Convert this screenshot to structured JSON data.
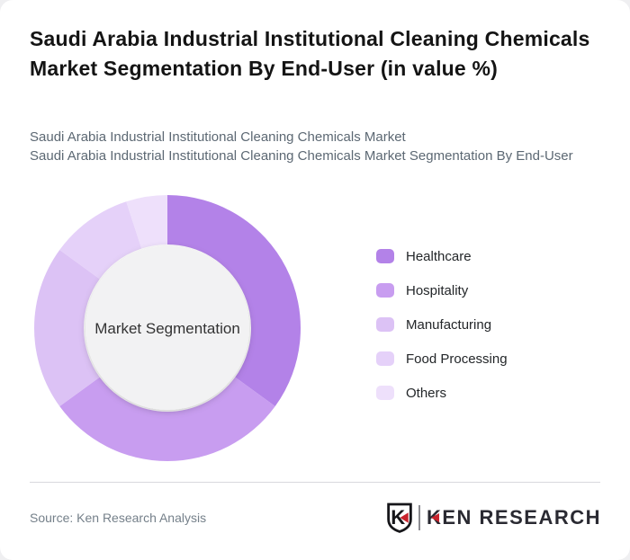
{
  "page": {
    "background": "#efeff1",
    "card_background": "#ffffff"
  },
  "header": {
    "title": "Saudi Arabia Industrial Institutional Cleaning Chemicals Market Segmentation By End-User (in value %)",
    "subtitle_line1": "Saudi Arabia Industrial Institutional Cleaning Chemicals Market",
    "subtitle_line2": "Saudi Arabia Industrial Institutional Cleaning Chemicals Market Segmentation By End-User"
  },
  "chart_data": {
    "type": "pie",
    "variant": "donut",
    "title": "Saudi Arabia Industrial Institutional Cleaning Chemicals Market Segmentation By End-User (in value %)",
    "center_label": "Market Segmentation",
    "categories": [
      "Healthcare",
      "Hospitality",
      "Manufacturing",
      "Food Processing",
      "Others"
    ],
    "values": [
      35,
      30,
      20,
      10,
      5
    ],
    "unit": "%",
    "colors": [
      "#b382e8",
      "#c89df0",
      "#dcc2f5",
      "#e5d1f9",
      "#eee0fb"
    ],
    "inner_circle_color": "#f2f2f3",
    "legend_position": "right",
    "start_angle_deg": 0,
    "clockwise": true
  },
  "footer": {
    "source": "Source: Ken Research Analysis",
    "logo_letter": "K",
    "logo_text": "KEN RESEARCH",
    "logo_red": "#c8232c",
    "logo_dark": "#2a2a32"
  }
}
